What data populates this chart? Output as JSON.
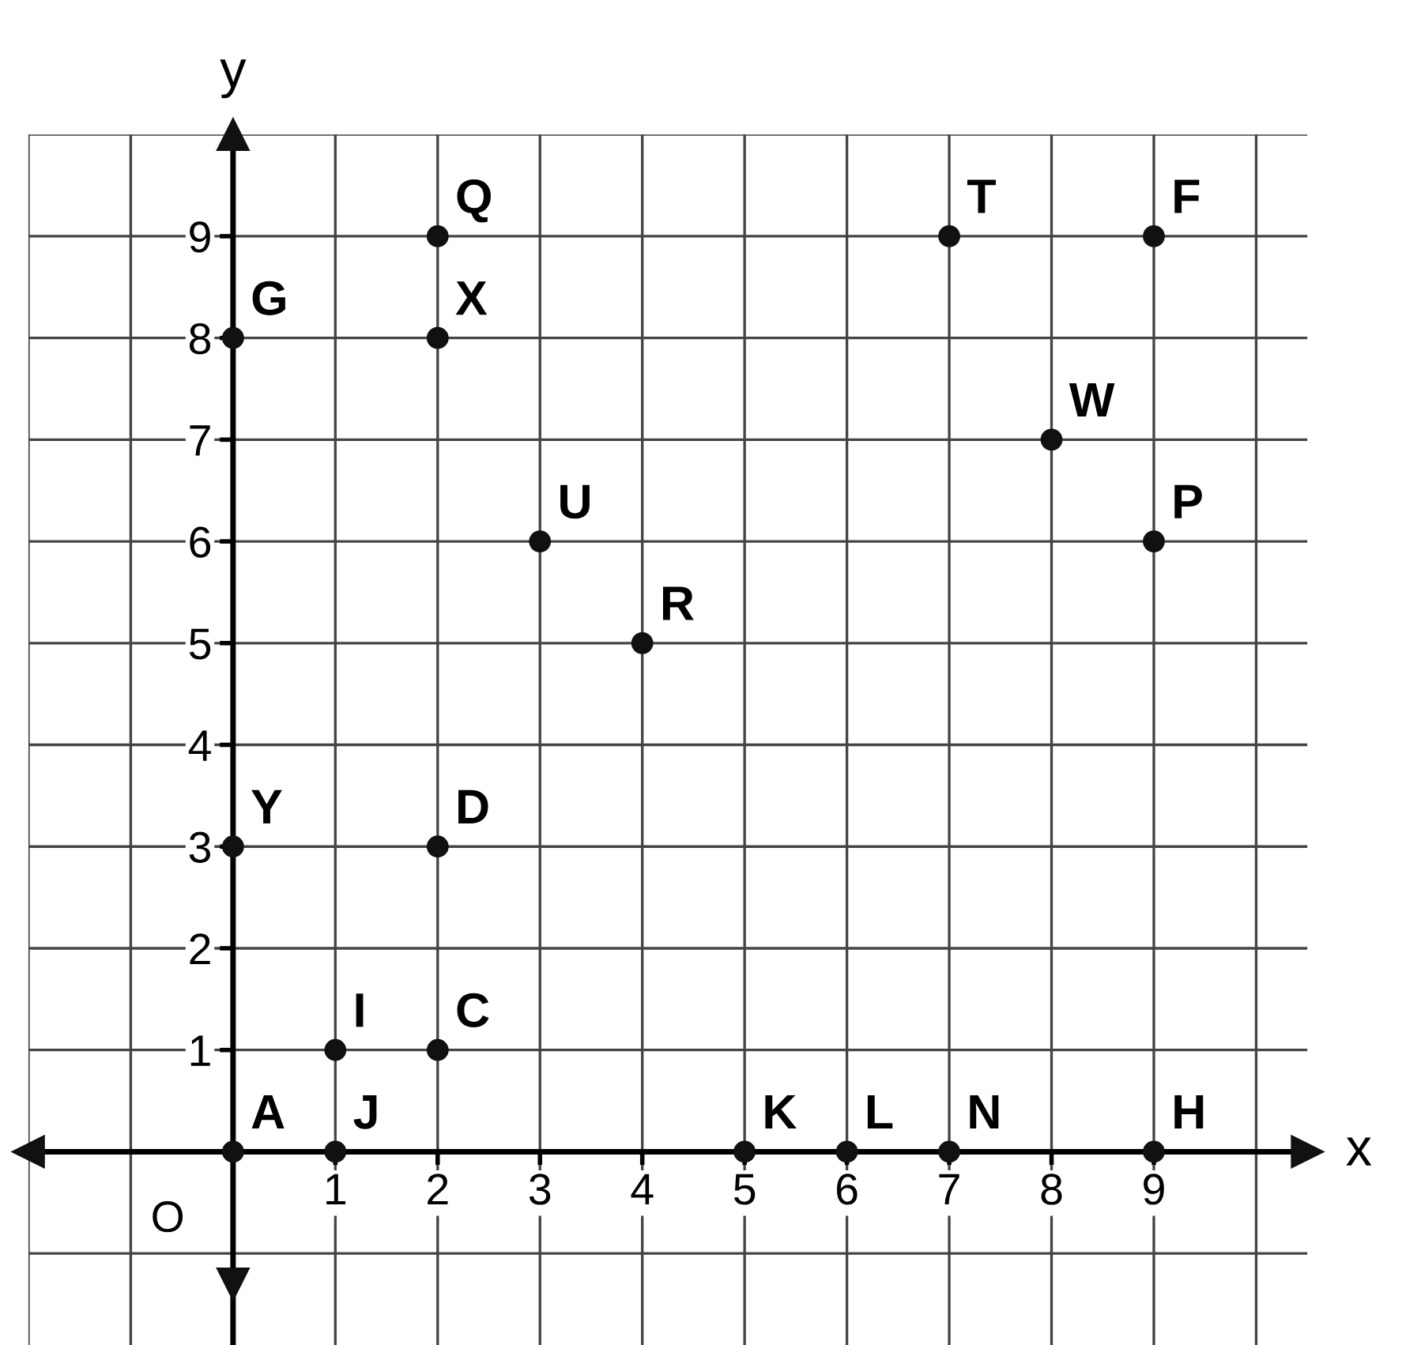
{
  "chart_data": {
    "type": "scatter",
    "xlabel": "x",
    "ylabel": "y",
    "x": [
      2,
      7,
      9,
      0,
      2,
      8,
      3,
      9,
      4,
      0,
      2,
      1,
      2,
      0,
      1,
      5,
      6,
      7,
      9
    ],
    "values": [
      9,
      9,
      9,
      8,
      8,
      7,
      6,
      6,
      5,
      3,
      3,
      1,
      1,
      0,
      0,
      0,
      0,
      0,
      0
    ],
    "color": "#111111",
    "marker": "circle",
    "grid": true,
    "xlim": [
      -2,
      10.5
    ],
    "ylim": [
      -1.9,
      10
    ],
    "xticks": [
      1,
      2,
      3,
      4,
      5,
      6,
      7,
      8,
      9
    ],
    "yticks": [
      1,
      2,
      3,
      4,
      5,
      6,
      7,
      8,
      9
    ],
    "annotations": [
      "O",
      {
        "text": "Q",
        "x": 2,
        "y": 9
      },
      {
        "text": "T",
        "x": 7,
        "y": 9
      },
      {
        "text": "F",
        "x": 9,
        "y": 9
      },
      {
        "text": "G",
        "x": 0,
        "y": 8
      },
      {
        "text": "X",
        "x": 2,
        "y": 8
      },
      {
        "text": "W",
        "x": 8,
        "y": 7
      },
      {
        "text": "U",
        "x": 3,
        "y": 6
      },
      {
        "text": "P",
        "x": 9,
        "y": 6
      },
      {
        "text": "R",
        "x": 4,
        "y": 5
      },
      {
        "text": "Y",
        "x": 0,
        "y": 3
      },
      {
        "text": "D",
        "x": 2,
        "y": 3
      },
      {
        "text": "I",
        "x": 1,
        "y": 1
      },
      {
        "text": "C",
        "x": 2,
        "y": 1
      },
      {
        "text": "A",
        "x": 0,
        "y": 0
      },
      {
        "text": "J",
        "x": 1,
        "y": 0
      },
      {
        "text": "K",
        "x": 5,
        "y": 0
      },
      {
        "text": "L",
        "x": 6,
        "y": 0
      },
      {
        "text": "N",
        "x": 7,
        "y": 0
      },
      {
        "text": "H",
        "x": 9,
        "y": 0
      }
    ]
  }
}
